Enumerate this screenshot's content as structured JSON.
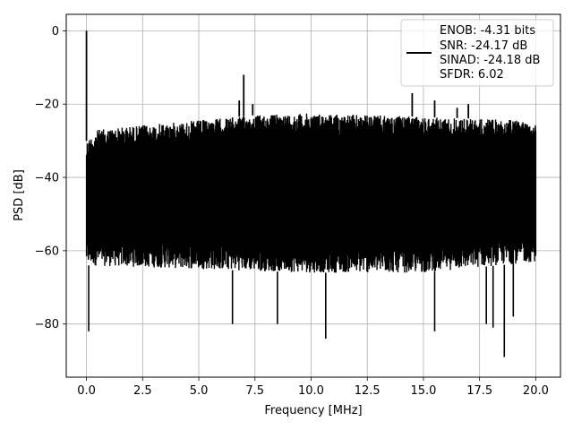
{
  "chart_data": {
    "type": "line",
    "title": "",
    "xlabel": "Frequency [MHz]",
    "ylabel": "PSD [dB]",
    "xlim": [
      -0.9,
      21.1
    ],
    "ylim": [
      -94.5,
      4.5
    ],
    "xticks": [
      0.0,
      2.5,
      5.0,
      7.5,
      10.0,
      12.5,
      15.0,
      17.5,
      20.0
    ],
    "xtick_labels": [
      "0.0",
      "2.5",
      "5.0",
      "7.5",
      "10.0",
      "12.5",
      "15.0",
      "17.5",
      "20.0"
    ],
    "yticks": [
      0,
      -20,
      -40,
      -60,
      -80
    ],
    "ytick_labels": [
      "0",
      "−20",
      "−40",
      "−60",
      "−80"
    ],
    "grid": true,
    "legend_position": "top-right",
    "legend_lines": [
      "ENOB: -4.31 bits",
      "SNR: -24.17 dB",
      "SINAD: -24.18 dB",
      "SFDR: 6.02"
    ],
    "line_color": "#000000",
    "series": [
      {
        "noise_band": {
          "x_start": 0.0,
          "x_end": 20.0,
          "upper_envelope": [
            [
              0.0,
              -30
            ],
            [
              0.5,
              -27
            ],
            [
              2.0,
              -26
            ],
            [
              4.0,
              -25
            ],
            [
              7.5,
              -23
            ],
            [
              10.0,
              -22.5
            ],
            [
              12.5,
              -23
            ],
            [
              15.0,
              -23.5
            ],
            [
              17.5,
              -24
            ],
            [
              20.0,
              -24.5
            ]
          ],
          "lower_envelope": [
            [
              0.0,
              -64
            ],
            [
              5.0,
              -65
            ],
            [
              10.0,
              -66
            ],
            [
              15.0,
              -66
            ],
            [
              20.0,
              -63
            ]
          ]
        },
        "peaks": [
          {
            "x": 0.0,
            "y": 0.0
          },
          {
            "x": 7.0,
            "y": -12
          },
          {
            "x": 14.5,
            "y": -17
          },
          {
            "x": 6.8,
            "y": -19
          },
          {
            "x": 7.4,
            "y": -20
          },
          {
            "x": 15.5,
            "y": -19
          },
          {
            "x": 17.0,
            "y": -20
          },
          {
            "x": 16.5,
            "y": -21
          }
        ],
        "dips": [
          {
            "x": 0.1,
            "y": -82
          },
          {
            "x": 10.65,
            "y": -84
          },
          {
            "x": 15.5,
            "y": -82
          },
          {
            "x": 18.6,
            "y": -89
          },
          {
            "x": 6.5,
            "y": -80
          },
          {
            "x": 18.1,
            "y": -81
          },
          {
            "x": 17.8,
            "y": -80
          },
          {
            "x": 8.5,
            "y": -80
          },
          {
            "x": 19.0,
            "y": -78
          }
        ]
      }
    ]
  }
}
